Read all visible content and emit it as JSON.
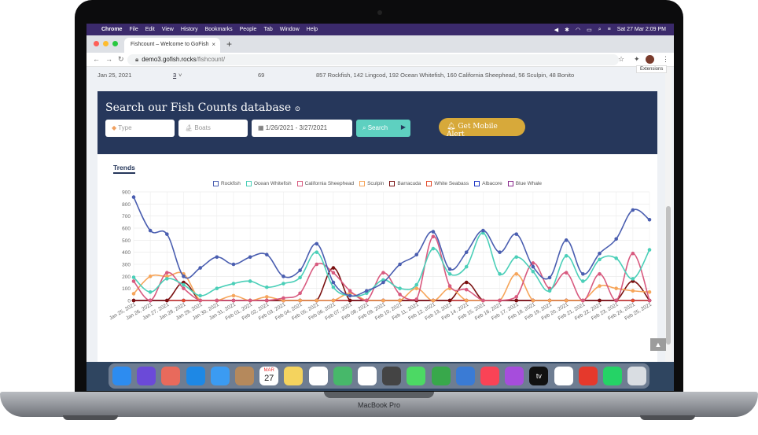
{
  "menubar": {
    "app": "Chrome",
    "menus": [
      "File",
      "Edit",
      "View",
      "History",
      "Bookmarks",
      "People",
      "Tab",
      "Window",
      "Help"
    ],
    "clock": "Sat 27 Mar  2:09 PM"
  },
  "browser": {
    "tab_title": "Fishcount – Welcome to GoFish",
    "url_host": "demo3.gofish.rocks",
    "url_path": "/fishcount/",
    "tooltip": "Extensions"
  },
  "summary_row": {
    "date": "Jan 25, 2021",
    "boats": "3",
    "total": "69",
    "catch": "857 Rockfish,  142 Lingcod,  192 Ocean Whitefish,  160 California Sheephead,  56 Sculpin,  48 Bonito"
  },
  "search_panel": {
    "title": "Search our Fish Counts database",
    "type_placeholder": "Type",
    "boats_placeholder": "Boats",
    "date_range": "1/26/2021 - 3/27/2021",
    "search_label": "Search",
    "alert_label": "Get Mobile Alert"
  },
  "trends_tab": "Trends",
  "colors": {
    "panel": "#26375b",
    "search": "#5ed0c0",
    "alert": "#d7a93a"
  },
  "chart_data": {
    "type": "line",
    "x": [
      "Jan 25, 2021",
      "Jan 26, 2021",
      "Jan 27, 2021",
      "Jan 28, 2021",
      "Jan 29, 2021",
      "Jan 30, 2021",
      "Jan 31, 2021",
      "Feb 01, 2021",
      "Feb 02, 2021",
      "Feb 03, 2021",
      "Feb 04, 2021",
      "Feb 05, 2021",
      "Feb 06, 2021",
      "Feb 07, 2021",
      "Feb 08, 2021",
      "Feb 09, 2021",
      "Feb 10, 2021",
      "Feb 11, 2021",
      "Feb 12, 2021",
      "Feb 13, 2021",
      "Feb 14, 2021",
      "Feb 15, 2021",
      "Feb 16, 2021",
      "Feb 17, 2021",
      "Feb 18, 2021",
      "Feb 19, 2021",
      "Feb 20, 2021",
      "Feb 21, 2021",
      "Feb 22, 2021",
      "Feb 23, 2021",
      "Feb 24, 2021",
      "Feb 25, 2021"
    ],
    "ylim": [
      0,
      900
    ],
    "yticks": [
      0,
      100,
      200,
      300,
      400,
      500,
      600,
      700,
      800,
      900
    ],
    "grid": true,
    "legend": "top",
    "series": [
      {
        "name": "Rockfish",
        "color": "#4a5eb0",
        "values": [
          857,
          580,
          550,
          200,
          270,
          360,
          300,
          360,
          380,
          200,
          250,
          470,
          150,
          40,
          80,
          150,
          300,
          380,
          570,
          260,
          400,
          580,
          400,
          550,
          280,
          190,
          500,
          220,
          390,
          510,
          750,
          670
        ]
      },
      {
        "name": "Ocean Whitefish",
        "color": "#4bcfb8",
        "values": [
          192,
          70,
          180,
          130,
          40,
          100,
          140,
          160,
          110,
          140,
          190,
          400,
          110,
          40,
          60,
          170,
          100,
          130,
          430,
          220,
          280,
          560,
          220,
          360,
          240,
          80,
          370,
          160,
          340,
          350,
          180,
          420
        ]
      },
      {
        "name": "California Sheephead",
        "color": "#d85a7f",
        "values": [
          160,
          0,
          230,
          100,
          0,
          0,
          0,
          0,
          0,
          20,
          60,
          300,
          230,
          80,
          0,
          230,
          50,
          10,
          530,
          120,
          90,
          0,
          0,
          30,
          310,
          100,
          230,
          0,
          220,
          0,
          390,
          0
        ]
      },
      {
        "name": "Sculpin",
        "color": "#f6a55a",
        "values": [
          56,
          200,
          200,
          220,
          0,
          0,
          40,
          0,
          30,
          0,
          0,
          0,
          0,
          60,
          0,
          0,
          0,
          100,
          0,
          100,
          0,
          0,
          0,
          220,
          0,
          0,
          0,
          0,
          120,
          100,
          80,
          70
        ]
      },
      {
        "name": "Barracuda",
        "color": "#7a1010",
        "values": [
          0,
          0,
          0,
          150,
          0,
          0,
          0,
          0,
          0,
          0,
          0,
          0,
          270,
          0,
          0,
          0,
          0,
          0,
          0,
          0,
          150,
          0,
          0,
          0,
          0,
          0,
          0,
          0,
          0,
          0,
          160,
          0
        ]
      },
      {
        "name": "White Seabass",
        "color": "#e34b2a",
        "values": [
          0,
          0,
          0,
          0,
          0,
          0,
          0,
          0,
          0,
          0,
          0,
          0,
          0,
          0,
          0,
          0,
          0,
          0,
          0,
          0,
          0,
          0,
          0,
          0,
          0,
          0,
          0,
          0,
          0,
          0,
          0,
          0
        ]
      },
      {
        "name": "Albacore",
        "color": "#1a33c4",
        "values": [
          0,
          0,
          0,
          0,
          0,
          0,
          0,
          0,
          0,
          0,
          0,
          0,
          0,
          0,
          0,
          0,
          0,
          0,
          0,
          0,
          0,
          0,
          0,
          0,
          0,
          0,
          0,
          0,
          0,
          0,
          0,
          0
        ]
      },
      {
        "name": "Blue Whale",
        "color": "#8b2a8e",
        "values": [
          0,
          0,
          0,
          0,
          0,
          0,
          0,
          0,
          0,
          0,
          0,
          0,
          0,
          0,
          0,
          0,
          0,
          0,
          0,
          0,
          0,
          0,
          0,
          0,
          0,
          0,
          0,
          0,
          0,
          0,
          0,
          0
        ]
      }
    ]
  },
  "macbook_label": "MacBook Pro",
  "dock": {
    "apps": [
      "finder-icon",
      "siri-icon",
      "launchpad-icon",
      "safari-icon",
      "mail-icon",
      "contacts-icon",
      "calendar-icon",
      "notes-icon",
      "reminders-icon",
      "maps-icon",
      "photos-icon",
      "sketchbook-icon",
      "messages-icon",
      "numbers-icon",
      "keynote-icon",
      "music-icon",
      "podcasts-icon",
      "tv-icon",
      "chrome-icon",
      "anydesk-icon",
      "whatsapp-icon",
      "trash-icon"
    ],
    "calendar_month": "MAR",
    "calendar_day": "27",
    "tv_label": "tv"
  }
}
